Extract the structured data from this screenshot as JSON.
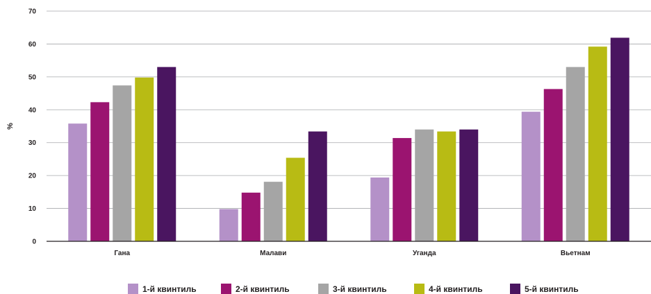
{
  "chart_data": {
    "type": "bar",
    "title": "",
    "xlabel": "",
    "ylabel": "%",
    "ylim": [
      0,
      70
    ],
    "yticks": [
      "0",
      "10",
      "20",
      "30",
      "40",
      "50",
      "60",
      "70"
    ],
    "grid": true,
    "legend_position": "bottom",
    "categories": [
      "Гана",
      "Малави",
      "Уганда",
      "Вьетнам"
    ],
    "series": [
      {
        "name": "1-й квинтиль",
        "color": "#b491c8",
        "values": [
          35.8,
          9.8,
          19.4,
          39.4
        ]
      },
      {
        "name": "2-й квинтиль",
        "color": "#9b1470",
        "values": [
          42.3,
          14.8,
          31.4,
          46.3
        ]
      },
      {
        "name": "3-й квинтиль",
        "color": "#a5a5a5",
        "values": [
          47.4,
          18.1,
          34.0,
          53.0
        ]
      },
      {
        "name": "4-й квинтиль",
        "color": "#b8bb14",
        "values": [
          49.8,
          25.4,
          33.4,
          59.2
        ]
      },
      {
        "name": "5-й квинтиль",
        "color": "#4a1560",
        "values": [
          53.0,
          33.4,
          34.0,
          61.9
        ]
      }
    ]
  }
}
